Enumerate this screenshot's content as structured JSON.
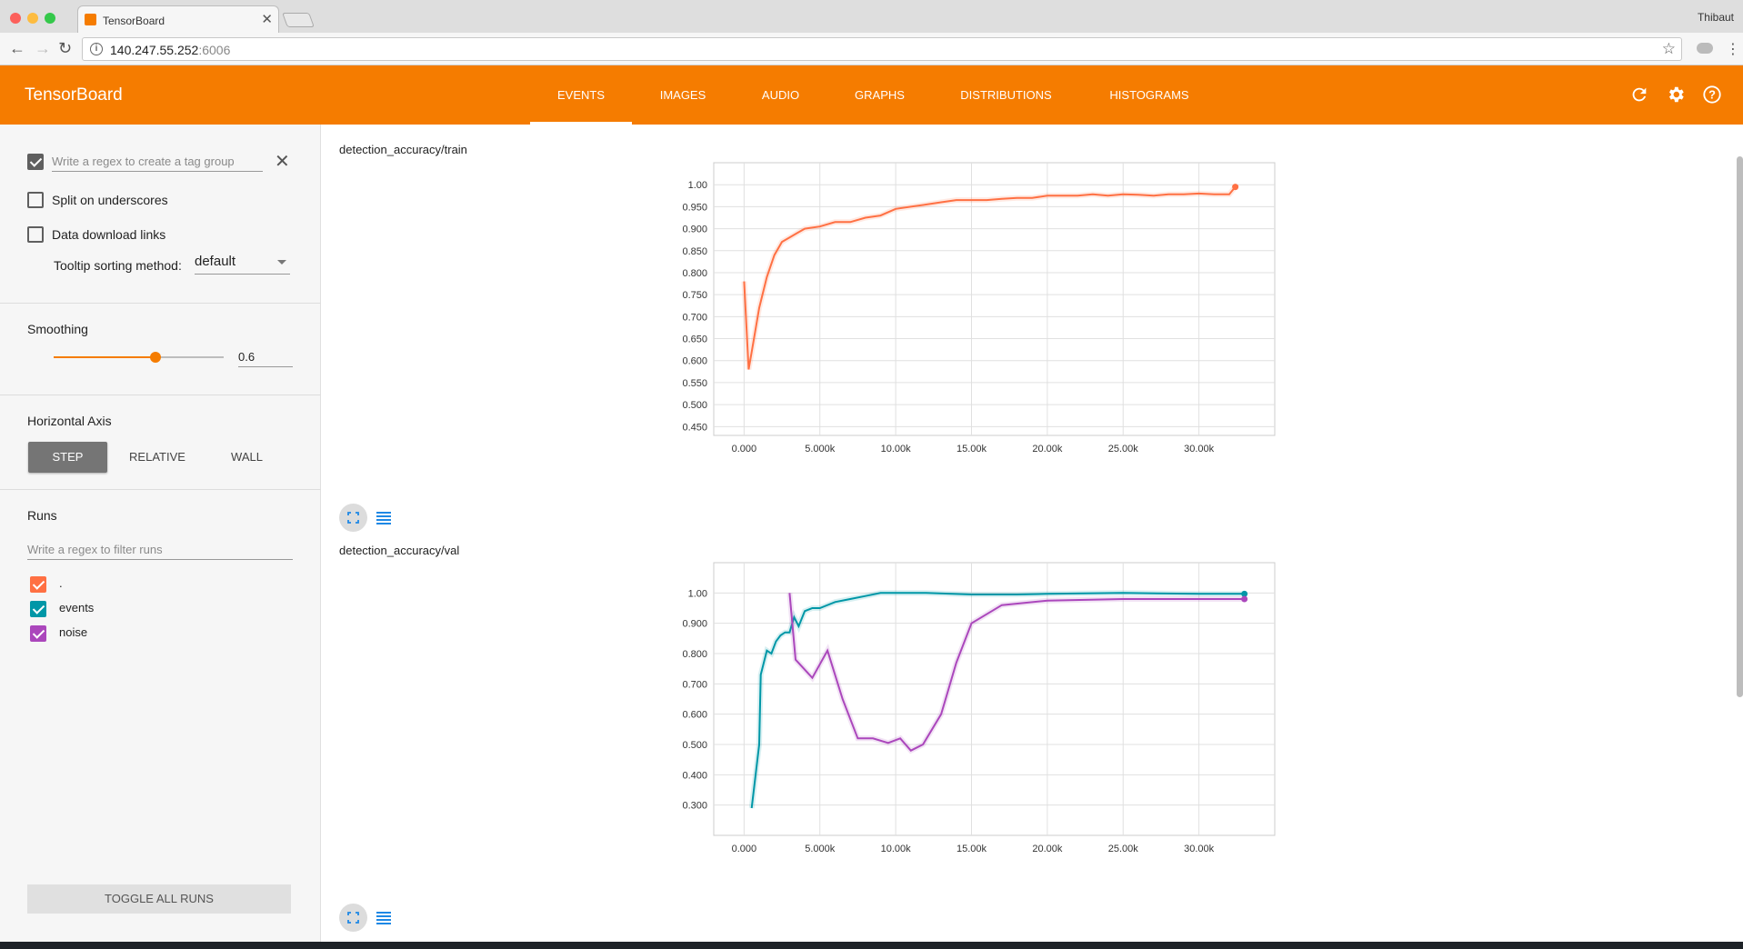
{
  "browser": {
    "tab_title": "TensorBoard",
    "url_host": "140.247.55.252",
    "url_port": ":6006",
    "user": "Thibaut"
  },
  "header": {
    "title": "TensorBoard",
    "tabs": [
      {
        "label": "EVENTS",
        "active": true
      },
      {
        "label": "IMAGES",
        "active": false
      },
      {
        "label": "AUDIO",
        "active": false
      },
      {
        "label": "GRAPHS",
        "active": false
      },
      {
        "label": "DISTRIBUTIONS",
        "active": false
      },
      {
        "label": "HISTOGRAMS",
        "active": false
      }
    ],
    "icons": [
      "refresh-icon",
      "settings-icon",
      "help-icon"
    ],
    "color": "#f57c00"
  },
  "sidebar": {
    "tag_regex_placeholder": "Write a regex to create a tag group",
    "split_underscores": "Split on underscores",
    "data_download": "Data download links",
    "tooltip_label": "Tooltip sorting method:",
    "tooltip_value": "default",
    "smoothing_label": "Smoothing",
    "smoothing_value": "0.6",
    "smoothing_level": 0.6,
    "axis_label": "Horizontal Axis",
    "axis_options": [
      "STEP",
      "RELATIVE",
      "WALL"
    ],
    "axis_selected": "STEP",
    "runs_label": "Runs",
    "runs_filter_placeholder": "Write a regex to filter runs",
    "runs": [
      {
        "name": ".",
        "color": "#ff7043"
      },
      {
        "name": "events",
        "color": "#0097a7"
      },
      {
        "name": "noise",
        "color": "#ab47bc"
      }
    ],
    "toggle_all": "TOGGLE ALL RUNS"
  },
  "chart_data": [
    {
      "type": "line",
      "title": "detection_accuracy/train",
      "xlim": [
        -2000,
        35000
      ],
      "ylim": [
        0.43,
        1.05
      ],
      "xticks": [
        0,
        5000,
        10000,
        15000,
        20000,
        25000,
        30000
      ],
      "xtick_labels": [
        "0.000",
        "5.000k",
        "10.00k",
        "15.00k",
        "20.00k",
        "25.00k",
        "30.00k"
      ],
      "yticks": [
        0.45,
        0.5,
        0.55,
        0.6,
        0.65,
        0.7,
        0.75,
        0.8,
        0.85,
        0.9,
        0.95,
        1.0
      ],
      "ytick_labels": [
        "0.450",
        "0.500",
        "0.550",
        "0.600",
        "0.650",
        "0.700",
        "0.750",
        "0.800",
        "0.850",
        "0.900",
        "0.950",
        "1.00"
      ],
      "grid": true,
      "series": [
        {
          "run": ".",
          "color": "#ff7043",
          "x": [
            0,
            300,
            600,
            1000,
            1500,
            2000,
            2500,
            3000,
            3500,
            4000,
            5000,
            6000,
            7000,
            8000,
            9000,
            10000,
            11000,
            12000,
            13000,
            14000,
            15000,
            16000,
            17000,
            18000,
            19000,
            20000,
            21000,
            22000,
            23000,
            24000,
            25000,
            26000,
            27000,
            28000,
            29000,
            30000,
            31000,
            32000,
            32400
          ],
          "y": [
            0.78,
            0.58,
            0.64,
            0.72,
            0.79,
            0.84,
            0.87,
            0.88,
            0.89,
            0.9,
            0.905,
            0.915,
            0.915,
            0.925,
            0.93,
            0.945,
            0.95,
            0.955,
            0.96,
            0.965,
            0.965,
            0.965,
            0.968,
            0.97,
            0.97,
            0.975,
            0.975,
            0.975,
            0.978,
            0.975,
            0.978,
            0.977,
            0.975,
            0.978,
            0.978,
            0.98,
            0.978,
            0.978,
            0.995
          ]
        }
      ]
    },
    {
      "type": "line",
      "title": "detection_accuracy/val",
      "xlim": [
        -2000,
        35000
      ],
      "ylim": [
        0.2,
        1.1
      ],
      "xticks": [
        0,
        5000,
        10000,
        15000,
        20000,
        25000,
        30000
      ],
      "xtick_labels": [
        "0.000",
        "5.000k",
        "10.00k",
        "15.00k",
        "20.00k",
        "25.00k",
        "30.00k"
      ],
      "yticks": [
        0.3,
        0.4,
        0.5,
        0.6,
        0.7,
        0.8,
        0.9,
        1.0
      ],
      "ytick_labels": [
        "0.300",
        "0.400",
        "0.500",
        "0.600",
        "0.700",
        "0.800",
        "0.900",
        "1.00"
      ],
      "grid": true,
      "series": [
        {
          "run": "events",
          "color": "#0097a7",
          "x": [
            500,
            1000,
            1100,
            1500,
            1800,
            2100,
            2400,
            2700,
            3000,
            3300,
            3600,
            4000,
            4500,
            5000,
            6000,
            7000,
            8000,
            9000,
            10000,
            12000,
            15000,
            18000,
            20000,
            25000,
            30000,
            32000,
            33000
          ],
          "y": [
            0.29,
            0.5,
            0.73,
            0.81,
            0.8,
            0.84,
            0.86,
            0.87,
            0.87,
            0.92,
            0.89,
            0.94,
            0.95,
            0.95,
            0.97,
            0.98,
            0.99,
            1.0,
            1.0,
            1.0,
            0.995,
            0.995,
            0.997,
            1.0,
            0.997,
            0.997,
            0.997
          ]
        },
        {
          "run": "noise",
          "color": "#ab47bc",
          "x": [
            3000,
            3400,
            4500,
            5500,
            6500,
            7500,
            8500,
            9500,
            10300,
            11000,
            11800,
            13000,
            14000,
            15000,
            17000,
            20000,
            25000,
            30000,
            32000,
            33000
          ],
          "y": [
            1.0,
            0.78,
            0.72,
            0.81,
            0.65,
            0.52,
            0.52,
            0.505,
            0.52,
            0.48,
            0.5,
            0.6,
            0.77,
            0.9,
            0.96,
            0.975,
            0.98,
            0.98,
            0.98,
            0.98
          ]
        }
      ]
    }
  ]
}
